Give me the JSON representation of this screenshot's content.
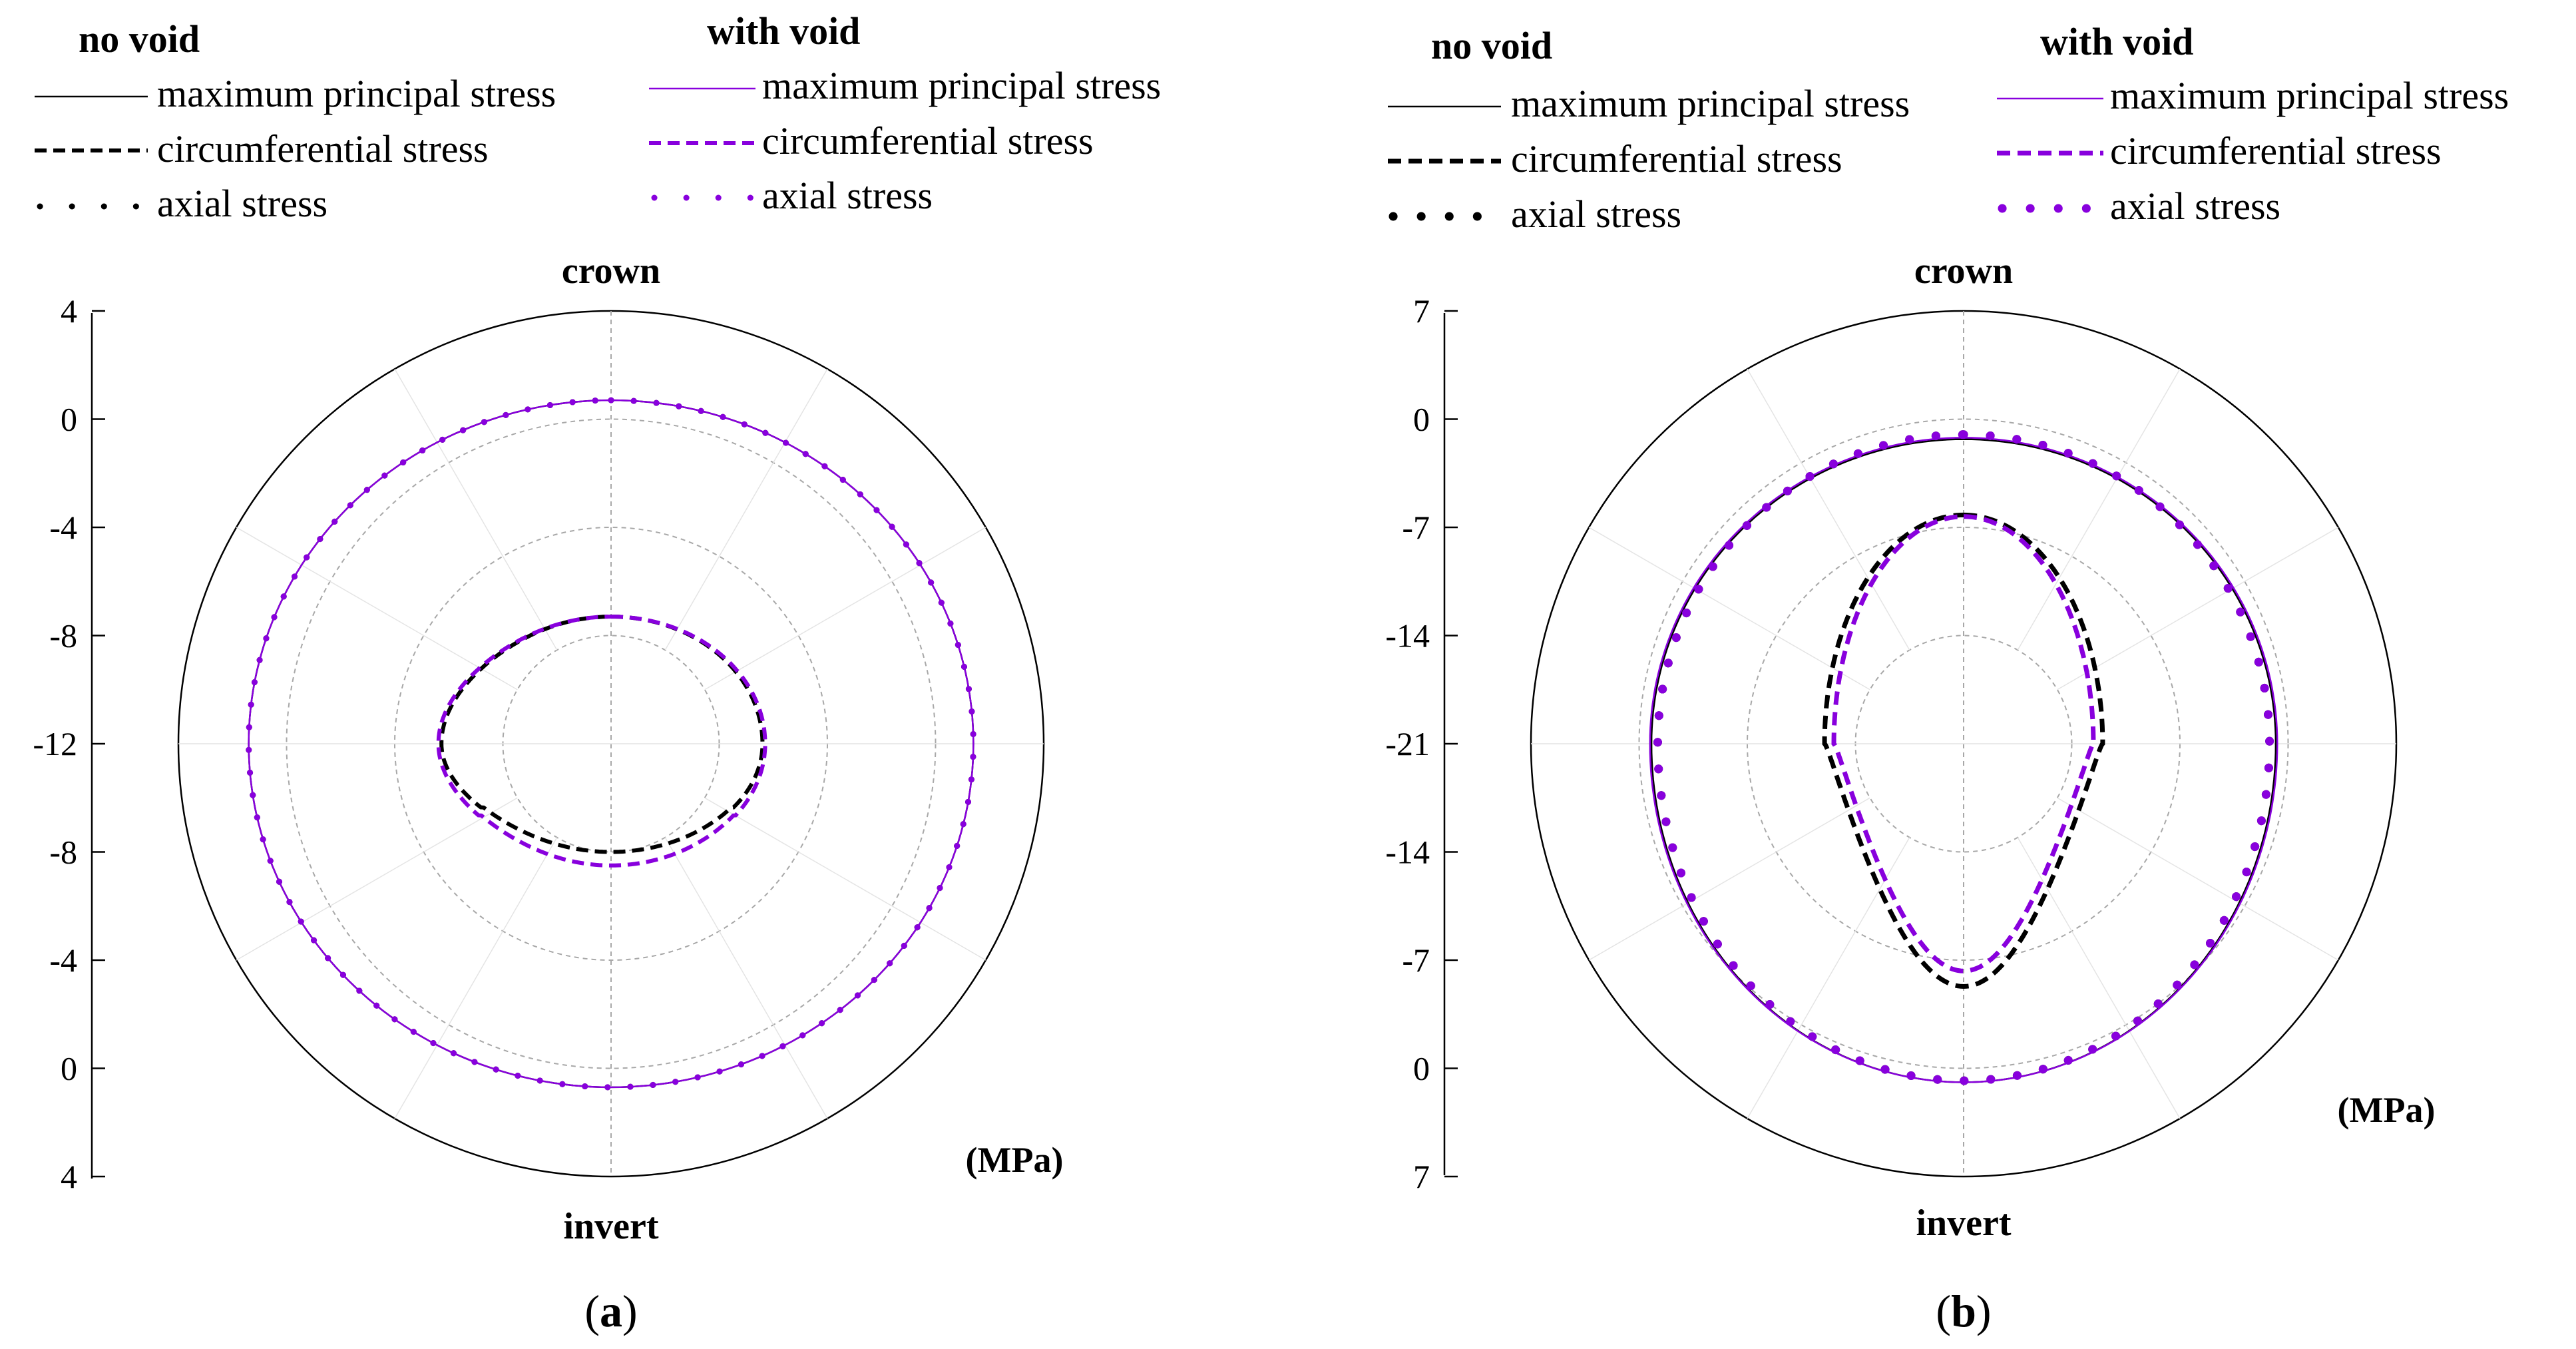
{
  "colors": {
    "no_void": "#000000",
    "with_void": "#8800dd",
    "grid": "#a8a8a8",
    "frame": "#000000"
  },
  "chart_data": [
    {
      "type": "polar-line",
      "subfigure_label": "a",
      "top_label": "crown",
      "bottom_label": "invert",
      "unit": "(MPa)",
      "legend": {
        "group_headers": [
          "no void",
          "with void"
        ],
        "entries": [
          "maximum principal stress",
          "circumferential stress",
          "axial stress"
        ],
        "placement": "top"
      },
      "radial_axis": {
        "position": "left",
        "labels_top_to_bottom": [
          "4",
          "0",
          "-4",
          "-8",
          "-12",
          "-8",
          "-4",
          "0",
          "4"
        ],
        "center_value": -12,
        "outer_value": 4,
        "ring_values": [
          -8,
          -4,
          0
        ]
      },
      "series": [
        {
          "name": "maximum principal stress",
          "group": "no void",
          "style": "solid",
          "shape": "ellipse",
          "top": 0.7,
          "bottom": 0.7,
          "side": 1.4
        },
        {
          "name": "axial stress",
          "group": "no void",
          "style": "dotted",
          "shape": "ellipse",
          "top": 0.7,
          "bottom": 0.7,
          "side": 1.4
        },
        {
          "name": "maximum principal stress",
          "group": "with void",
          "style": "solid",
          "shape": "ellipse",
          "top": 0.7,
          "bottom": 0.7,
          "side": 1.4
        },
        {
          "name": "axial stress",
          "group": "with void",
          "style": "dotted",
          "shape": "ellipse",
          "top": 0.7,
          "bottom": 0.7,
          "side": 1.4
        },
        {
          "name": "circumferential stress",
          "group": "no void",
          "style": "dashed",
          "shape": "egg",
          "top": -7.3,
          "bottom": -8.0,
          "side": -6.4
        },
        {
          "name": "circumferential stress",
          "group": "with void",
          "style": "dashed",
          "shape": "egg",
          "top": -7.3,
          "bottom": -7.5,
          "side": -6.3
        }
      ]
    },
    {
      "type": "polar-line",
      "subfigure_label": "b",
      "top_label": "crown",
      "bottom_label": "invert",
      "unit": "(MPa)",
      "legend": {
        "group_headers": [
          "no void",
          "with void"
        ],
        "entries": [
          "maximum principal stress",
          "circumferential stress",
          "axial stress"
        ],
        "placement": "top"
      },
      "radial_axis": {
        "position": "left",
        "labels_top_to_bottom": [
          "7",
          "0",
          "-7",
          "-14",
          "-21",
          "-14",
          "-7",
          "0",
          "7"
        ],
        "center_value": -21,
        "outer_value": 7,
        "ring_values": [
          -14,
          -7,
          0
        ]
      },
      "series": [
        {
          "name": "maximum principal stress",
          "group": "no void",
          "style": "solid",
          "shape": "ellipse",
          "top": -1.3,
          "bottom": 0.9,
          "side": -0.8
        },
        {
          "name": "axial stress",
          "group": "no void",
          "style": "dotted",
          "shape": "ellipse",
          "top": -1.0,
          "bottom": 0.8,
          "side": -1.2
        },
        {
          "name": "maximum principal stress",
          "group": "with void",
          "style": "solid",
          "shape": "ellipse",
          "top": -1.2,
          "bottom": 0.9,
          "side": -0.7
        },
        {
          "name": "axial stress",
          "group": "with void",
          "style": "dotted",
          "shape": "ellipse",
          "top": -1.0,
          "bottom": 0.8,
          "side": -1.2
        },
        {
          "name": "circumferential stress",
          "group": "no void",
          "style": "dashed",
          "shape": "pear",
          "top": -6.2,
          "bottom": -5.3,
          "side": -12.0
        },
        {
          "name": "circumferential stress",
          "group": "with void",
          "style": "dashed",
          "shape": "pear",
          "top": -6.3,
          "bottom": -6.3,
          "side": -12.6
        }
      ]
    }
  ]
}
